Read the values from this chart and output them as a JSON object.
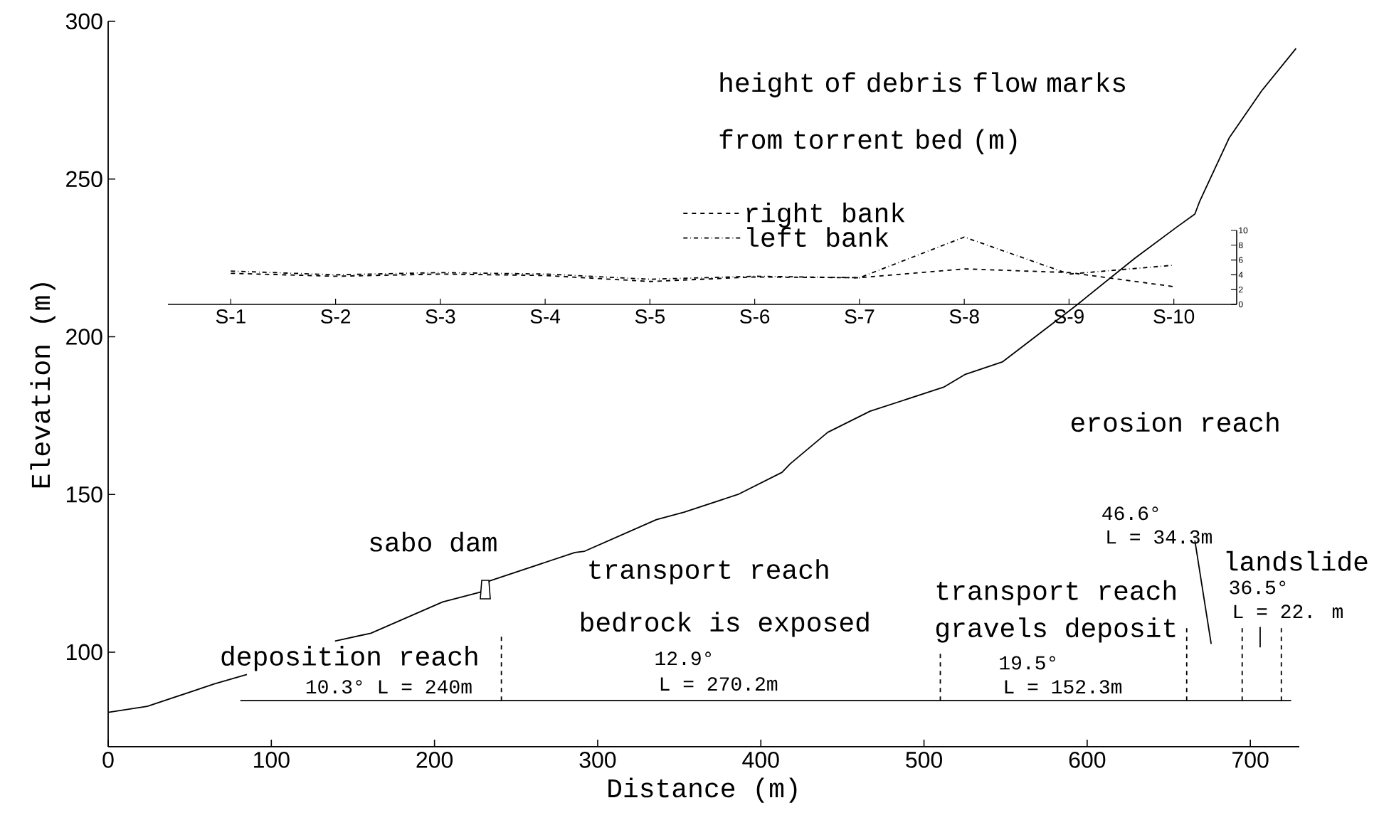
{
  "chart_data": [
    {
      "type": "line",
      "xlabel": "Distance (m)",
      "ylabel": "Elevation (m)",
      "xlim": [
        0,
        730
      ],
      "ylim": [
        70,
        300
      ],
      "xticks": [
        0,
        100,
        200,
        300,
        400,
        500,
        600,
        700
      ],
      "yticks": [
        100,
        150,
        200,
        250,
        300
      ],
      "series": [
        {
          "color": "#000000",
          "line_style": "solid",
          "x": [
            0,
            24,
            65,
            85,
            112,
            139,
            161,
            205,
            228,
            234,
            286,
            292,
            336,
            353,
            386,
            413,
            418,
            441,
            467,
            512,
            525,
            548,
            593,
            629,
            655,
            666,
            669,
            687,
            707,
            728
          ],
          "values": [
            80.9,
            82.8,
            89.9,
            92.9,
            null,
            103.5,
            106,
            115.9,
            119,
            122.6,
            131.6,
            132,
            142,
            144.4,
            150,
            157,
            159.7,
            169.7,
            176.4,
            184,
            188,
            192,
            209.8,
            224.8,
            234.8,
            238.9,
            243,
            263,
            278,
            291.4
          ]
        },
        {
          "color": "#000000",
          "line_style": "solid",
          "x": [
            81,
            725
          ],
          "values": [
            84.6,
            84.6
          ]
        },
        {
          "color": "#000000",
          "line_style": "dashed",
          "x": [
            241,
            241
          ],
          "values": [
            84.6,
            105.8
          ]
        },
        {
          "color": "#000000",
          "line_style": "dashed",
          "x": [
            510,
            510
          ],
          "values": [
            84.6,
            100.7
          ]
        },
        {
          "color": "#000000",
          "line_style": "dashed",
          "x": [
            661,
            661
          ],
          "values": [
            84.6,
            108.8
          ]
        },
        {
          "color": "#000000",
          "line_style": "dashed",
          "x": [
            695,
            695
          ],
          "values": [
            84.6,
            108
          ]
        },
        {
          "color": "#000000",
          "line_style": "dashed",
          "x": [
            719,
            719
          ],
          "values": [
            84.6,
            108
          ]
        },
        {
          "color": "#000000",
          "line_style": "solid",
          "x": [
            666,
            676
          ],
          "values": [
            135.4,
            102.6
          ]
        },
        {
          "color": "#000000",
          "line_style": "solid",
          "x": [
            706,
            706
          ],
          "values": [
            108,
            101.5
          ]
        }
      ],
      "annotations": [
        "sabo dam",
        "deposition reach",
        "10.3° L = 240m",
        "transport reach",
        "bedrock is exposed",
        "12.9°",
        "L = 270.2m",
        "transport reach",
        "gravels deposit",
        "19.5°",
        "L = 152.3m",
        "erosion reach",
        "46.6°",
        "L = 34.3m",
        "landslide",
        "36.5°",
        "L = 22. m"
      ]
    },
    {
      "type": "line",
      "title": "height of debris flow marks from torrent bed (m)",
      "ylim": [
        0,
        10
      ],
      "yticks": [
        0,
        2,
        4,
        6,
        8,
        10
      ],
      "legend": "top",
      "categories": [
        "S-1",
        "S-2",
        "S-3",
        "S-4",
        "S-5",
        "S-6",
        "S-7",
        "S-8",
        "S-9",
        "S-10"
      ],
      "series": [
        {
          "name": "right bank",
          "color": "#000000",
          "line_style": "dashed",
          "values": [
            4.2,
            3.8,
            4.1,
            3.9,
            3.1,
            3.7,
            3.6,
            4.8,
            4.3,
            2.4
          ]
        },
        {
          "name": "left bank",
          "color": "#000000",
          "line_style": "dashdot",
          "values": [
            4.5,
            4.0,
            4.3,
            4.1,
            3.4,
            3.8,
            3.6,
            9.1,
            4.1,
            5.3
          ]
        }
      ]
    }
  ]
}
